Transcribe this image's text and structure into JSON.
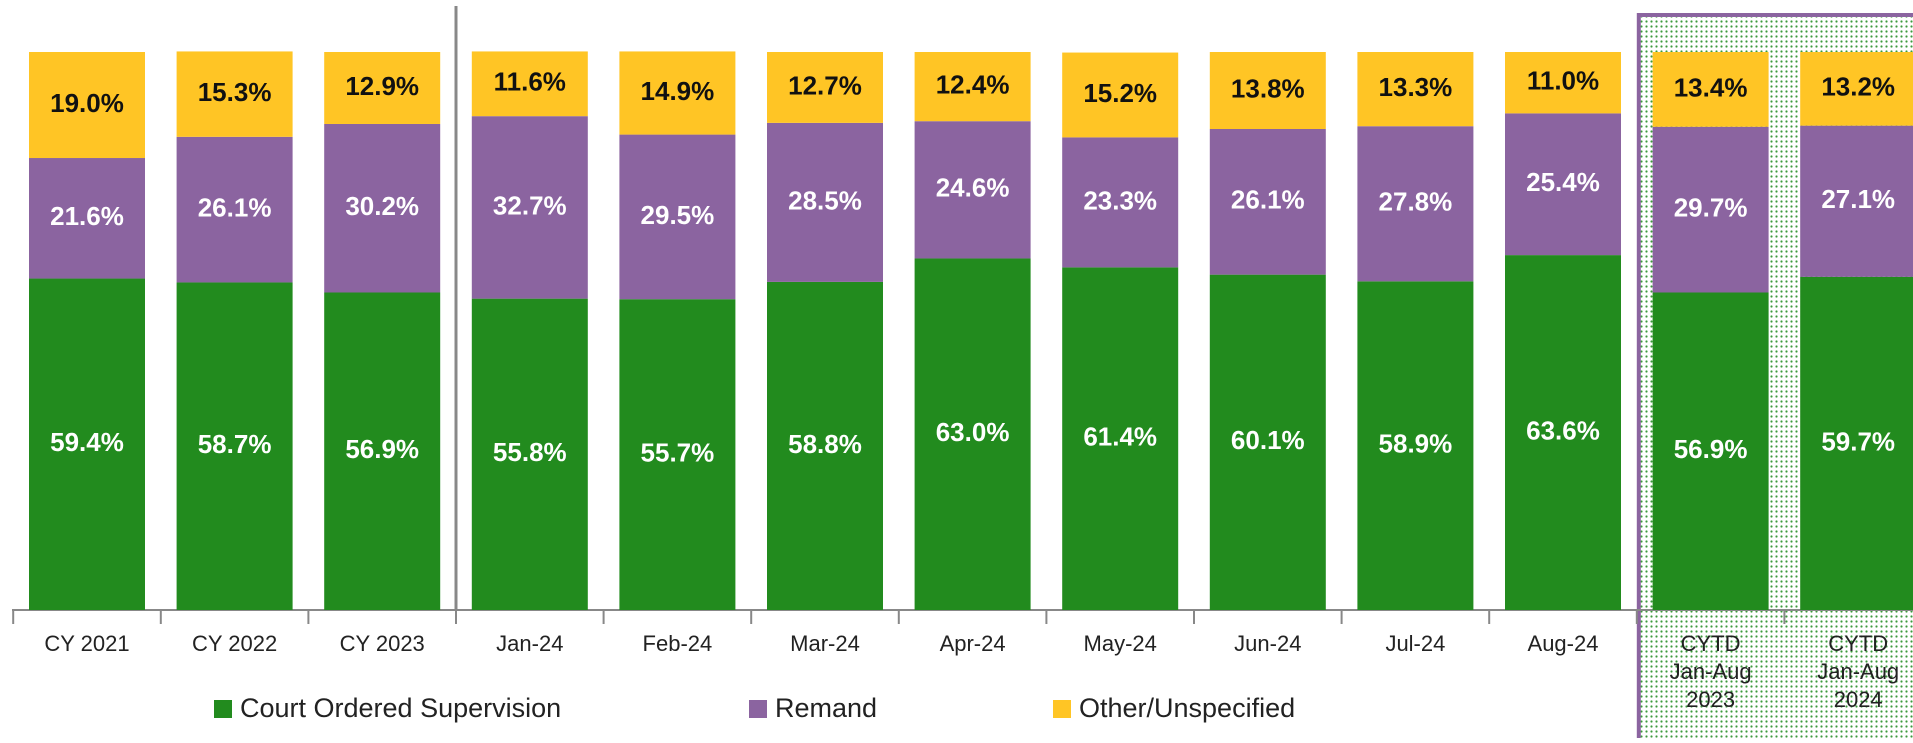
{
  "chart_data": {
    "type": "stacked-bar",
    "categories": [
      "CY 2021",
      "CY 2022",
      "CY 2023",
      "Jan-24",
      "Feb-24",
      "Mar-24",
      "Apr-24",
      "May-24",
      "Jun-24",
      "Jul-24",
      "Aug-24",
      "CYTD\nJan-Aug\n2023",
      "CYTD\nJan-Aug\n2024"
    ],
    "series": [
      {
        "name": "Court Ordered Supervision",
        "color": "#228b1e",
        "values": [
          59.4,
          58.7,
          56.9,
          55.8,
          55.7,
          58.8,
          63.0,
          61.4,
          60.1,
          58.9,
          63.6,
          56.9,
          59.7
        ],
        "value_labels": [
          "59.4%",
          "58.7%",
          "56.9%",
          "55.8%",
          "55.7%",
          "58.8%",
          "63.0%",
          "61.4%",
          "60.1%",
          "58.9%",
          "63.6%",
          "56.9%",
          "59.7%"
        ]
      },
      {
        "name": "Remand",
        "color": "#8b64a0",
        "values": [
          21.6,
          26.1,
          30.2,
          32.7,
          29.5,
          28.5,
          24.6,
          23.3,
          26.1,
          27.8,
          25.4,
          29.7,
          27.1
        ],
        "value_labels": [
          "21.6%",
          "26.1%",
          "30.2%",
          "32.7%",
          "29.5%",
          "28.5%",
          "24.6%",
          "23.3%",
          "26.1%",
          "27.8%",
          "25.4%",
          "29.7%",
          "27.1%"
        ]
      },
      {
        "name": "Other/Unspecified",
        "color": "#ffc525",
        "values": [
          19.0,
          15.3,
          12.9,
          11.6,
          14.9,
          12.7,
          12.4,
          15.2,
          13.8,
          13.3,
          11.0,
          13.4,
          13.2
        ],
        "value_labels": [
          "19.0%",
          "15.3%",
          "12.9%",
          "11.6%",
          "14.9%",
          "12.7%",
          "12.4%",
          "15.2%",
          "13.8%",
          "13.3%",
          "11.0%",
          "13.4%",
          "13.2%"
        ]
      }
    ],
    "ylim": [
      0,
      100
    ],
    "legend": "bottom"
  }
}
